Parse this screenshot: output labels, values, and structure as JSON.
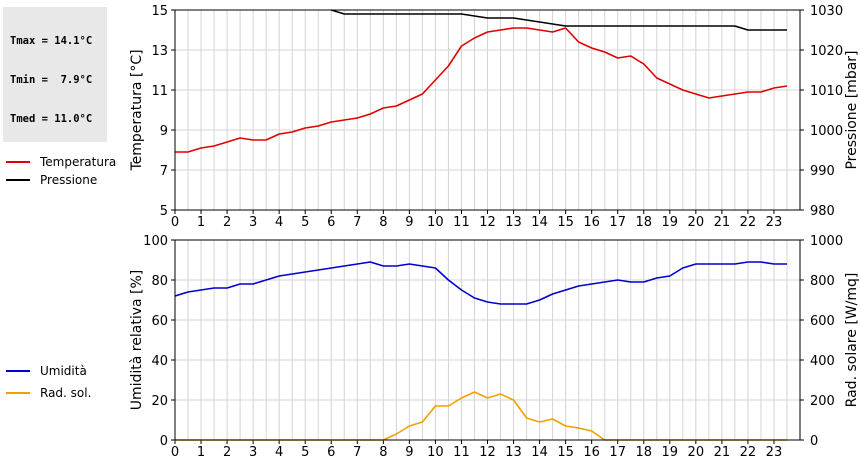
{
  "stats": {
    "lines": [
      "Tmax = 14.1°C",
      "Tmin =  7.9°C",
      "Tmed = 11.0°C"
    ]
  },
  "legend_top": [
    {
      "label": "Temperatura",
      "color": "#e00000"
    },
    {
      "label": "Pressione",
      "color": "#000000"
    }
  ],
  "legend_bottom": [
    {
      "label": "Umidità",
      "color": "#0000cc"
    },
    {
      "label": "Rad. sol.",
      "color": "#f0a000"
    }
  ],
  "chart_data": [
    {
      "type": "line",
      "ylabel": "Temperatura [°C]",
      "y2label": "Pressione [mbar]",
      "xlim": [
        0,
        24
      ],
      "ylim": [
        5,
        15
      ],
      "y2lim": [
        980,
        1030
      ],
      "xticks": [
        "0",
        "1",
        "2",
        "3",
        "4",
        "5",
        "6",
        "7",
        "8",
        "9",
        "10",
        "11",
        "12",
        "13",
        "14",
        "15",
        "16",
        "17",
        "18",
        "19",
        "20",
        "21",
        "22",
        "23"
      ],
      "yticks": [
        "5",
        "7",
        "9",
        "11",
        "13",
        "15"
      ],
      "y2ticks": [
        "980",
        "990",
        "1000",
        "1010",
        "1020",
        "1030"
      ],
      "grid": true,
      "series": [
        {
          "name": "Temperatura",
          "axis": "left",
          "color": "#e00000",
          "x": [
            0,
            0.5,
            1,
            1.5,
            2,
            2.5,
            3,
            3.5,
            4,
            4.5,
            5,
            5.5,
            6,
            6.5,
            7,
            7.5,
            8,
            8.5,
            9,
            9.5,
            10,
            10.5,
            11,
            11.5,
            12,
            12.5,
            13,
            13.5,
            14,
            14.5,
            15,
            15.5,
            16,
            16.5,
            17,
            17.5,
            18,
            18.5,
            19,
            19.5,
            20,
            20.5,
            21,
            21.5,
            22,
            22.5,
            23,
            23.5
          ],
          "y": [
            7.9,
            7.9,
            8.1,
            8.2,
            8.4,
            8.6,
            8.5,
            8.5,
            8.8,
            8.9,
            9.1,
            9.2,
            9.4,
            9.5,
            9.6,
            9.8,
            10.1,
            10.2,
            10.5,
            10.8,
            11.5,
            12.2,
            13.2,
            13.6,
            13.9,
            14.0,
            14.1,
            14.1,
            14.0,
            13.9,
            14.1,
            13.4,
            13.1,
            12.9,
            12.6,
            12.7,
            12.3,
            11.6,
            11.3,
            11.0,
            10.8,
            10.6,
            10.7,
            10.8,
            10.9,
            10.9,
            11.1,
            11.2
          ]
        },
        {
          "name": "Pressione",
          "axis": "right",
          "color": "#000000",
          "x": [
            6,
            6.5,
            9,
            11,
            12,
            13,
            14,
            15,
            16,
            17,
            18,
            19,
            20,
            21,
            21.5,
            22,
            23,
            23.5
          ],
          "y": [
            1030,
            1029,
            1029,
            1029,
            1028,
            1028,
            1027,
            1026,
            1026,
            1026,
            1026,
            1026,
            1026,
            1026,
            1026,
            1025,
            1025,
            1025
          ]
        }
      ]
    },
    {
      "type": "line",
      "ylabel": "Umidità relativa [%]",
      "y2label": "Rad. solare [W/mq]",
      "xlim": [
        0,
        24
      ],
      "ylim": [
        0,
        100
      ],
      "y2lim": [
        0,
        1000
      ],
      "xticks": [
        "0",
        "1",
        "2",
        "3",
        "4",
        "5",
        "6",
        "7",
        "8",
        "9",
        "10",
        "11",
        "12",
        "13",
        "14",
        "15",
        "16",
        "17",
        "18",
        "19",
        "20",
        "21",
        "22",
        "23"
      ],
      "yticks": [
        "0",
        "20",
        "40",
        "60",
        "80",
        "100"
      ],
      "y2ticks": [
        "0",
        "200",
        "400",
        "600",
        "800",
        "1000"
      ],
      "grid": true,
      "series": [
        {
          "name": "Umidità",
          "axis": "left",
          "color": "#0000cc",
          "x": [
            0,
            0.5,
            1,
            1.5,
            2,
            2.5,
            3,
            3.5,
            4,
            4.5,
            5,
            5.5,
            6,
            6.5,
            7,
            7.5,
            8,
            8.5,
            9,
            9.5,
            10,
            10.5,
            11,
            11.5,
            12,
            12.5,
            13,
            13.5,
            14,
            14.5,
            15,
            15.5,
            16,
            16.5,
            17,
            17.5,
            18,
            18.5,
            19,
            19.5,
            20,
            20.5,
            21,
            21.5,
            22,
            22.5,
            23,
            23.5
          ],
          "y": [
            72,
            74,
            75,
            76,
            76,
            78,
            78,
            80,
            82,
            83,
            84,
            85,
            86,
            87,
            88,
            89,
            87,
            87,
            88,
            87,
            86,
            80,
            75,
            71,
            69,
            68,
            68,
            68,
            70,
            73,
            75,
            77,
            78,
            79,
            80,
            79,
            79,
            81,
            82,
            86,
            88,
            88,
            88,
            88,
            89,
            89,
            88,
            88
          ]
        },
        {
          "name": "Rad. sol.",
          "axis": "right",
          "color": "#f0a000",
          "x": [
            0,
            8,
            8.5,
            9,
            9.5,
            10,
            10.5,
            11,
            11.5,
            12,
            12.5,
            13,
            13.5,
            14,
            14.5,
            15,
            15.5,
            16,
            16.5,
            17,
            23.5
          ],
          "y": [
            0,
            0,
            30,
            70,
            90,
            170,
            170,
            210,
            240,
            210,
            230,
            200,
            110,
            90,
            105,
            70,
            60,
            45,
            0,
            0,
            0
          ]
        }
      ]
    }
  ]
}
